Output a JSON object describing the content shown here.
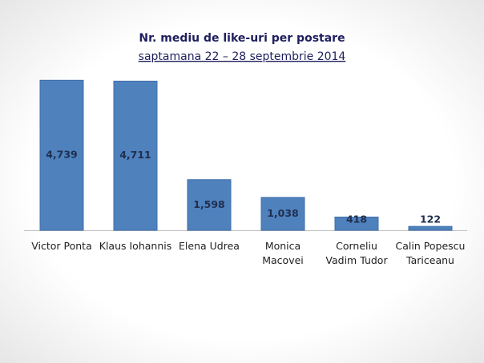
{
  "chart_data": {
    "type": "bar",
    "title": "Nr. mediu de like-uri  per postare",
    "subtitle": "saptamana 22 – 28 septembrie 2014",
    "categories": [
      "Victor Ponta",
      "Klaus Iohannis",
      "Elena Udrea",
      "Monica\nMacovei",
      "Corneliu\nVadim Tudor",
      "Calin Popescu\nTariceanu"
    ],
    "values": [
      4739,
      4711,
      1598,
      1038,
      418,
      122
    ],
    "value_labels": [
      "4,739",
      "4,711",
      "1,598",
      "1,038",
      "418",
      "122"
    ],
    "color": "#4f81bd",
    "ylim": [
      0,
      5000
    ]
  }
}
